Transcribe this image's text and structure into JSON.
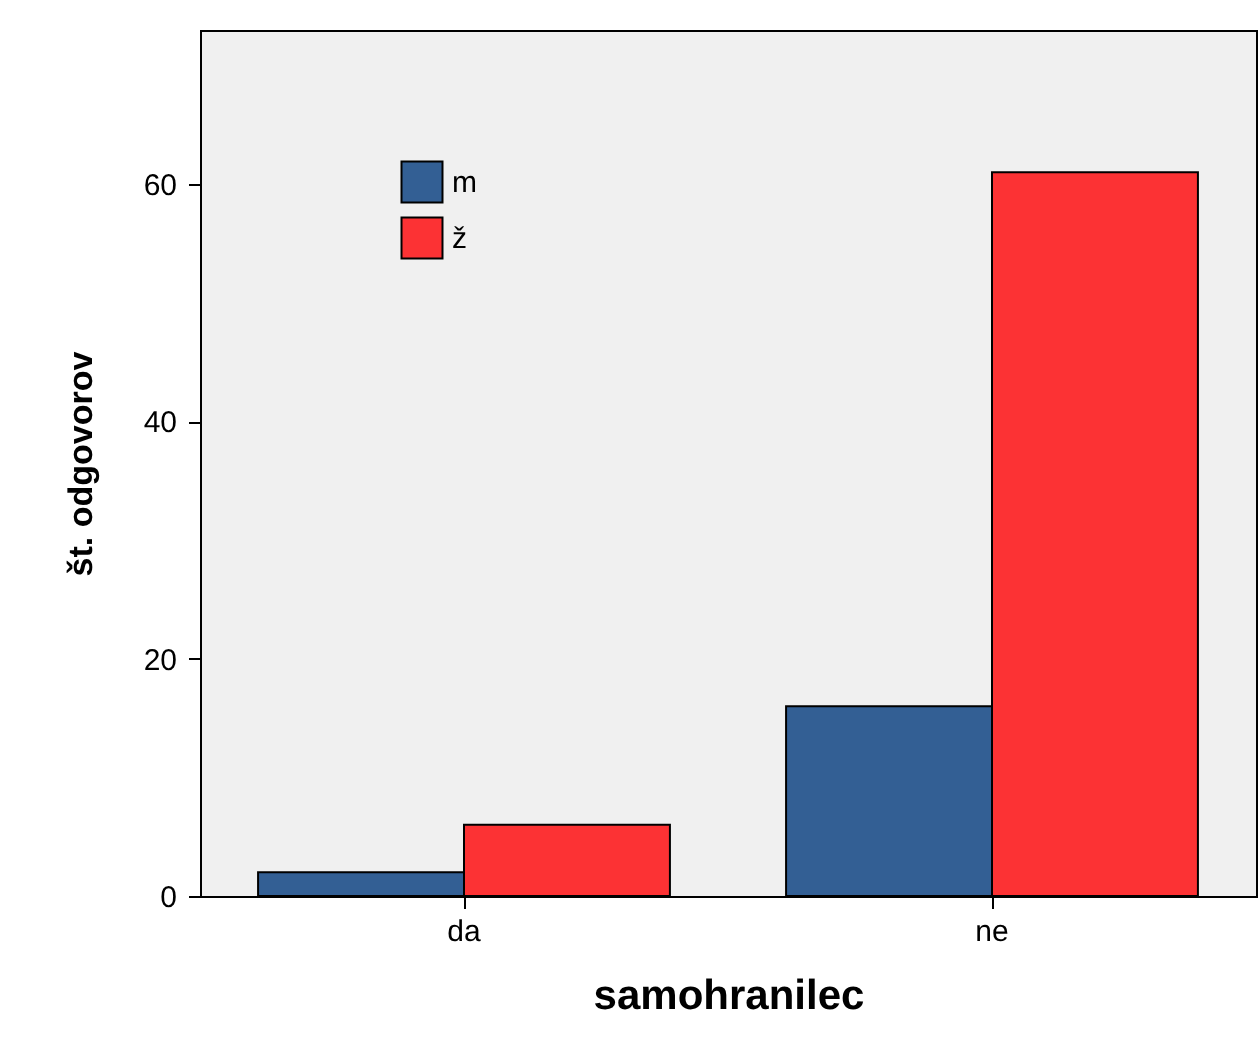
{
  "chart_data": {
    "type": "bar",
    "xlabel": "samohranilec",
    "ylabel": "št. odgovorov",
    "categories": [
      "da",
      "ne"
    ],
    "series": [
      {
        "name": "m",
        "color": "#335f94",
        "values": [
          2,
          16
        ]
      },
      {
        "name": "ž",
        "color": "#fc3234",
        "values": [
          6,
          61
        ]
      }
    ],
    "ylim": [
      0,
      73
    ],
    "yticks": [
      0,
      20,
      40,
      60
    ],
    "grid": false,
    "legend": "top left"
  }
}
